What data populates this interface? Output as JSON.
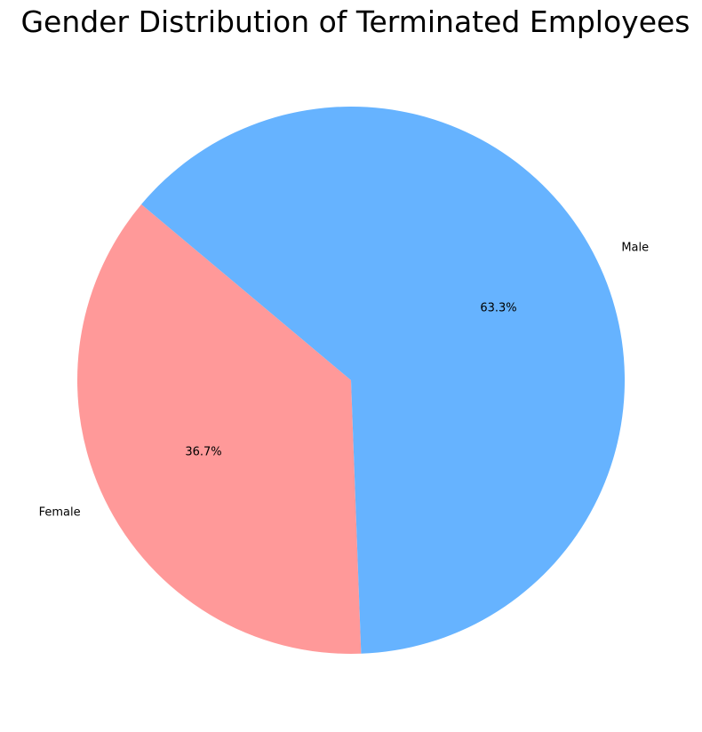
{
  "chart_data": {
    "type": "pie",
    "title": "Gender Distribution of Terminated Employees",
    "categories": [
      "Female",
      "Male"
    ],
    "values": [
      36.7,
      63.3
    ],
    "value_labels": [
      "36.7%",
      "63.3%"
    ],
    "colors": [
      "#ff9999",
      "#66b3ff"
    ],
    "start_angle_deg": 140,
    "direction": "counterclockwise"
  }
}
